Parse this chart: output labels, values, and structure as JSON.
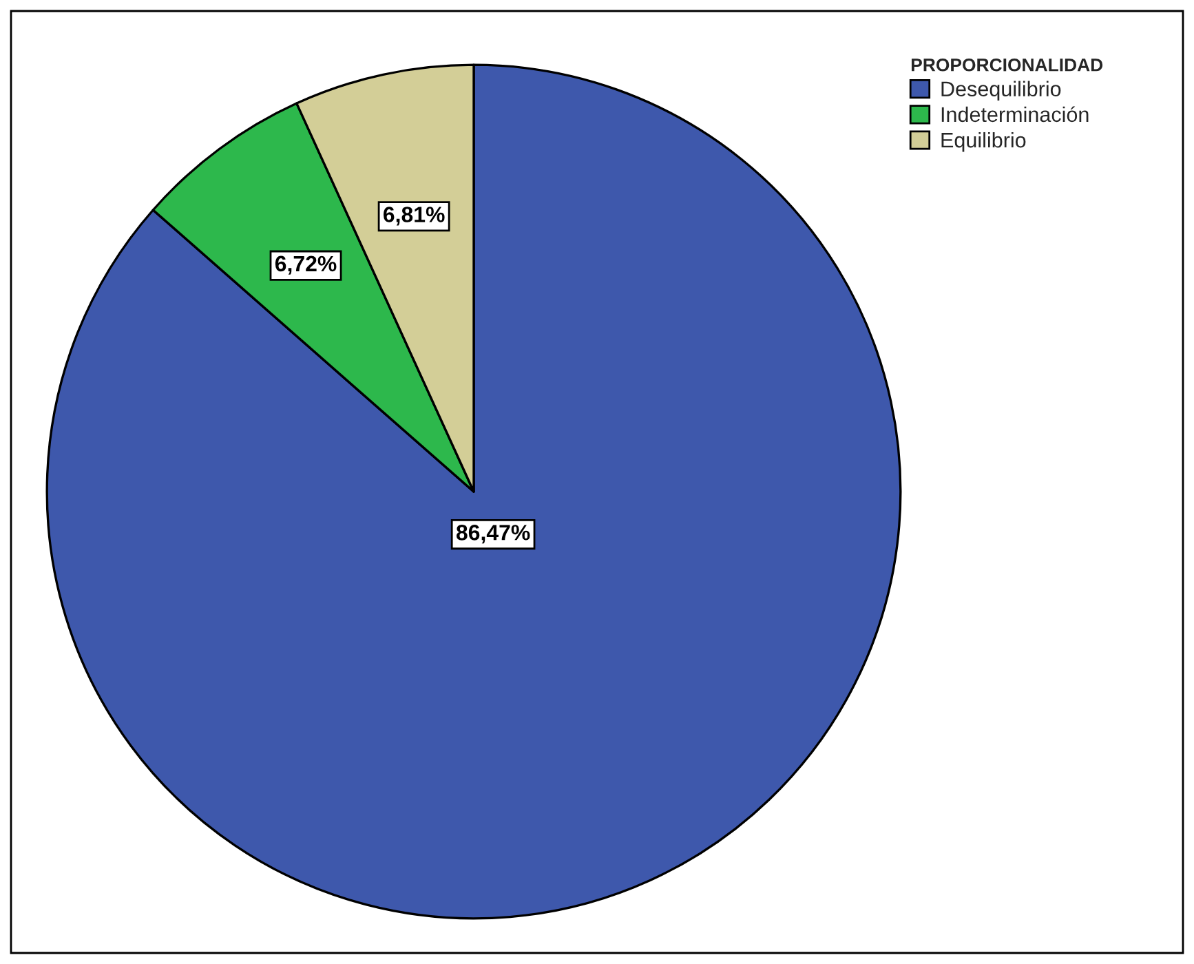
{
  "chart_data": {
    "type": "pie",
    "legend_title": "PROPORCIONALIDAD",
    "categories": [
      "Desequilibrio",
      "Indeterminación",
      "Equilibrio"
    ],
    "values": [
      86.47,
      6.72,
      6.81
    ],
    "colors": [
      "#3e58ac",
      "#2db84c",
      "#d3ce97"
    ],
    "value_labels": [
      "86,47%",
      "6,72%",
      "6,81%"
    ],
    "legend": "top right"
  }
}
